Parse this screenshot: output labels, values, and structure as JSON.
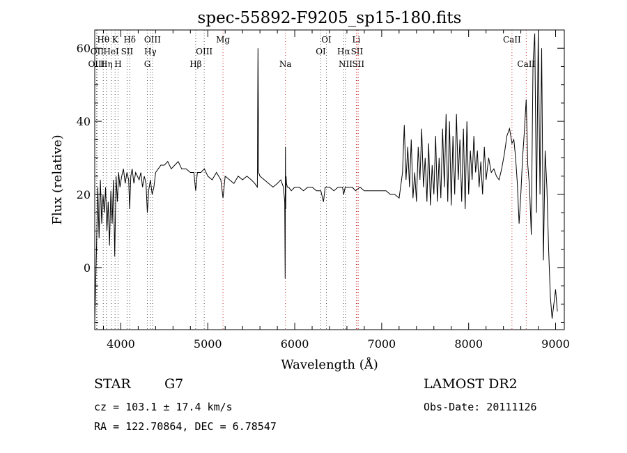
{
  "chart_data": {
    "type": "line",
    "title": "spec-55892-F9205_sp15-180.fits",
    "xlabel": "Wavelength (Å)",
    "ylabel": "Flux (relative)",
    "xlim": [
      3700,
      9100
    ],
    "ylim": [
      -17,
      65
    ],
    "xticks": [
      4000,
      5000,
      6000,
      7000,
      8000,
      9000
    ],
    "yticks": [
      0,
      20,
      40,
      60
    ],
    "grid": false,
    "series": [
      {
        "values_x": [
          3700,
          3720,
          3735,
          3750,
          3765,
          3780,
          3795,
          3810,
          3825,
          3840,
          3855,
          3870,
          3885,
          3900,
          3915,
          3930,
          3945,
          3960,
          3975,
          3990,
          4010,
          4030,
          4050,
          4070,
          4090,
          4101,
          4115,
          4130,
          4150,
          4170,
          4190,
          4210,
          4230,
          4250,
          4270,
          4290,
          4305,
          4320,
          4340,
          4360,
          4380,
          4400,
          4430,
          4460,
          4500,
          4540,
          4580,
          4620,
          4660,
          4700,
          4750,
          4800,
          4840,
          4861,
          4880,
          4920,
          4960,
          5000,
          5050,
          5100,
          5150,
          5175,
          5200,
          5250,
          5300,
          5350,
          5400,
          5450,
          5500,
          5540,
          5570,
          5577,
          5585,
          5600,
          5650,
          5700,
          5750,
          5800,
          5840,
          5870,
          5885,
          5890,
          5893,
          5896,
          5900,
          5905,
          5915,
          5930,
          5960,
          6000,
          6050,
          6100,
          6150,
          6200,
          6250,
          6300,
          6330,
          6350,
          6400,
          6450,
          6500,
          6550,
          6563,
          6580,
          6620,
          6660,
          6700,
          6750,
          6800,
          6850,
          6900,
          6950,
          7000,
          7050,
          7100,
          7150,
          7200,
          7240,
          7260,
          7280,
          7300,
          7320,
          7340,
          7360,
          7380,
          7400,
          7420,
          7440,
          7460,
          7480,
          7500,
          7520,
          7540,
          7560,
          7580,
          7600,
          7620,
          7640,
          7660,
          7680,
          7700,
          7720,
          7740,
          7760,
          7780,
          7800,
          7820,
          7840,
          7860,
          7880,
          7900,
          7920,
          7940,
          7960,
          7980,
          8000,
          8020,
          8040,
          8060,
          8080,
          8100,
          8120,
          8140,
          8160,
          8180,
          8200,
          8230,
          8260,
          8290,
          8320,
          8350,
          8380,
          8410,
          8440,
          8470,
          8498,
          8520,
          8540,
          8560,
          8580,
          8600,
          8620,
          8640,
          8662,
          8680,
          8700,
          8720,
          8740,
          8760,
          8780,
          8800,
          8820,
          8840,
          8860,
          8880,
          8900,
          8920,
          8940,
          8960,
          8980,
          9000,
          9020
        ],
        "values_y": [
          -15,
          5,
          22,
          8,
          24,
          12,
          20,
          15,
          22,
          10,
          18,
          6,
          21,
          12,
          24,
          3,
          25,
          18,
          26,
          22,
          25,
          27,
          23,
          26,
          24,
          16,
          25,
          27,
          23,
          26,
          25,
          24,
          26,
          22,
          25,
          23,
          15,
          21,
          24,
          20,
          22,
          26,
          27,
          28,
          28,
          29,
          27,
          28,
          29,
          27,
          27,
          26,
          26,
          21,
          26,
          26,
          27,
          25,
          24,
          26,
          24,
          19,
          25,
          24,
          23,
          25,
          24,
          25,
          24,
          23,
          22,
          60,
          26,
          25,
          24,
          23,
          22,
          23,
          24,
          22,
          18,
          -3,
          33,
          16,
          25,
          23,
          22,
          22,
          21,
          22,
          22,
          21,
          22,
          22,
          21,
          21,
          18,
          22,
          22,
          21,
          22,
          22,
          20,
          22,
          22,
          22,
          21,
          22,
          21,
          21,
          21,
          21,
          21,
          21,
          20,
          20,
          19,
          26,
          39,
          24,
          33,
          22,
          35,
          19,
          26,
          18,
          33,
          24,
          38,
          22,
          30,
          18,
          34,
          17,
          28,
          20,
          36,
          18,
          30,
          19,
          38,
          22,
          42,
          18,
          40,
          17,
          36,
          20,
          42,
          24,
          35,
          18,
          38,
          16,
          40,
          20,
          32,
          24,
          36,
          26,
          32,
          22,
          29,
          20,
          33,
          24,
          30,
          26,
          27,
          25,
          24,
          27,
          31,
          36,
          38,
          34,
          35,
          30,
          23,
          12,
          20,
          30,
          37,
          46,
          28,
          22,
          9,
          56,
          64,
          15,
          65,
          20,
          60,
          2,
          32,
          22,
          5,
          -8,
          -14,
          -10,
          -6,
          -12
        ]
      }
    ],
    "line_markers": [
      {
        "label": "Hθ",
        "x": 3798,
        "row": 1,
        "color": "#555555"
      },
      {
        "label": "K",
        "x": 3934,
        "row": 1,
        "color": "#555555"
      },
      {
        "label": "Hδ",
        "x": 4102,
        "row": 1,
        "color": "#555555"
      },
      {
        "label": "OIII",
        "x": 4364,
        "row": 1,
        "color": "#555555"
      },
      {
        "label": "Mg",
        "x": 5175,
        "row": 1,
        "color": "#cc3333"
      },
      {
        "label": "OI",
        "x": 6364,
        "row": 1,
        "color": "#555555"
      },
      {
        "label": "Li",
        "x": 6708,
        "row": 1,
        "color": "#cc3333"
      },
      {
        "label": "CaII",
        "x": 8498,
        "row": 1,
        "color": "#cc3333"
      },
      {
        "label": "OII",
        "x": 3727,
        "row": 2,
        "color": "#555555"
      },
      {
        "label": "HeI",
        "x": 3889,
        "row": 2,
        "color": "#555555"
      },
      {
        "label": "SII",
        "x": 4072,
        "row": 2,
        "color": "#555555"
      },
      {
        "label": "Hγ",
        "x": 4340,
        "row": 2,
        "color": "#555555"
      },
      {
        "label": "OIII",
        "x": 4959,
        "row": 2,
        "color": "#555555"
      },
      {
        "label": "OI",
        "x": 6300,
        "row": 2,
        "color": "#555555"
      },
      {
        "label": "Hα",
        "x": 6563,
        "row": 2,
        "color": "#555555"
      },
      {
        "label": "SII",
        "x": 6716,
        "row": 2,
        "color": "#cc3333"
      },
      {
        "label": "OIII",
        "x": 3720,
        "row": 3,
        "color": "#555555"
      },
      {
        "label": "Hη",
        "x": 3835,
        "row": 3,
        "color": "#555555"
      },
      {
        "label": "H",
        "x": 3968,
        "row": 3,
        "color": "#555555"
      },
      {
        "label": "G",
        "x": 4305,
        "row": 3,
        "color": "#555555"
      },
      {
        "label": "Hβ",
        "x": 4861,
        "row": 3,
        "color": "#555555"
      },
      {
        "label": "Na",
        "x": 5893,
        "row": 3,
        "color": "#cc3333"
      },
      {
        "label": "NII",
        "x": 6584,
        "row": 3,
        "color": "#555555"
      },
      {
        "label": "SII",
        "x": 6731,
        "row": 3,
        "color": "#cc3333"
      },
      {
        "label": "CaII",
        "x": 8662,
        "row": 3,
        "color": "#cc3333"
      }
    ]
  },
  "info": {
    "object_class": "STAR",
    "subclass": "G7",
    "survey": "LAMOST DR2",
    "redshift": "cz = 103.1 ± 17.4 km/s",
    "obs_date": "Obs-Date: 20111126",
    "coords": "RA = 122.70864, DEC =    6.78547"
  }
}
